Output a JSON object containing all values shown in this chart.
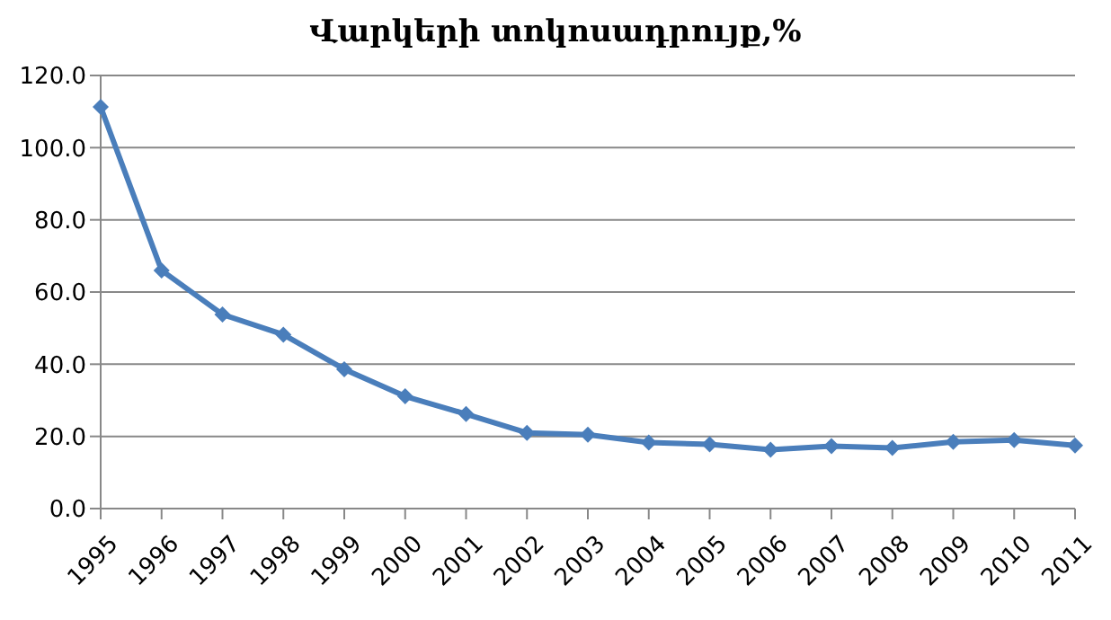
{
  "chart_data": {
    "type": "line",
    "title": "Վարկերի տոկոսադրույք,%",
    "categories": [
      "1995",
      "1996",
      "1997",
      "1998",
      "1999",
      "2000",
      "2001",
      "2002",
      "2003",
      "2004",
      "2005",
      "2006",
      "2007",
      "2008",
      "2009",
      "2010",
      "2011"
    ],
    "series": [
      {
        "color": "#4a7ebb",
        "values": [
          111.3,
          66,
          53.8,
          48.2,
          38.6,
          31.1,
          26.2,
          21,
          20.5,
          18.3,
          17.8,
          16.3,
          17.3,
          16.8,
          18.5,
          19,
          17.5
        ]
      }
    ],
    "ylim": [
      0,
      120
    ],
    "yticks": [
      {
        "value": 0,
        "label": "0.0"
      },
      {
        "value": 20,
        "label": "20.0"
      },
      {
        "value": 40,
        "label": "40.0"
      },
      {
        "value": 60,
        "label": "60.0"
      },
      {
        "value": 80,
        "label": "80.0"
      },
      {
        "value": 100,
        "label": "100.0"
      },
      {
        "value": 120,
        "label": "120.0"
      }
    ],
    "grid": "y",
    "marker": "diamond",
    "line_style": "solid",
    "legend": false
  }
}
